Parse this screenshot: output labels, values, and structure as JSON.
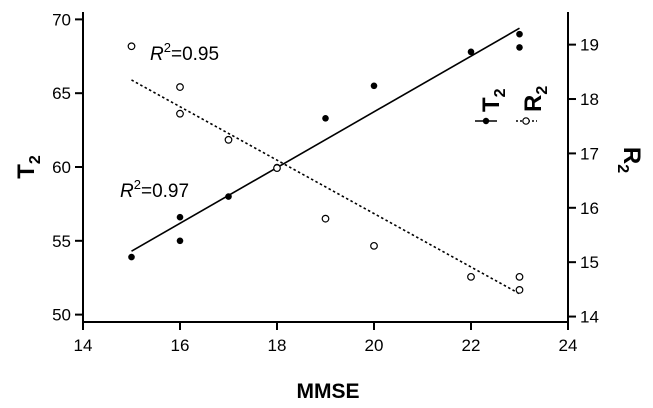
{
  "chart_data": {
    "type": "scatter",
    "xlabel": "MMSE",
    "ylabel_left": "T",
    "ylabel_left_sub": "2",
    "ylabel_right": "R",
    "ylabel_right_sub": "2",
    "xlim": [
      14,
      24
    ],
    "ylim_left": [
      49.5,
      70.5
    ],
    "ylim_right": [
      13.9,
      19.6
    ],
    "xticks": [
      "14",
      "16",
      "18",
      "20",
      "22",
      "24"
    ],
    "yticks_left": [
      "50",
      "55",
      "60",
      "65",
      "70"
    ],
    "yticks_right": [
      "14",
      "15",
      "16",
      "17",
      "18",
      "19"
    ],
    "grid": false,
    "legend_position": "right",
    "series": [
      {
        "name": "T",
        "name_sub": "2",
        "axis": "left",
        "marker": "filled-circle",
        "line_style": "solid",
        "color": "#000000",
        "points": [
          {
            "x": 15,
            "y": 53.9
          },
          {
            "x": 16,
            "y": 56.6
          },
          {
            "x": 16,
            "y": 55.0
          },
          {
            "x": 17,
            "y": 58.0
          },
          {
            "x": 18,
            "y": 60.0
          },
          {
            "x": 19,
            "y": 63.3
          },
          {
            "x": 20,
            "y": 65.5
          },
          {
            "x": 22,
            "y": 67.8
          },
          {
            "x": 23,
            "y": 69.0
          },
          {
            "x": 23,
            "y": 68.1
          }
        ],
        "fit": {
          "x": [
            15,
            23
          ],
          "y": [
            54.3,
            69.4
          ]
        },
        "r2_label": "=0.97",
        "r2_prefix": "R",
        "r2_sup": "2"
      },
      {
        "name": "R",
        "name_sub": "2",
        "axis": "right",
        "marker": "open-circle",
        "line_style": "dotted",
        "color": "#000000",
        "points": [
          {
            "x": 15,
            "y": 18.97
          },
          {
            "x": 16,
            "y": 18.22
          },
          {
            "x": 16,
            "y": 17.73
          },
          {
            "x": 17,
            "y": 17.25
          },
          {
            "x": 18,
            "y": 16.73
          },
          {
            "x": 19,
            "y": 15.8
          },
          {
            "x": 20,
            "y": 15.3
          },
          {
            "x": 22,
            "y": 14.73
          },
          {
            "x": 23,
            "y": 14.73
          },
          {
            "x": 23,
            "y": 14.49
          }
        ],
        "fit": {
          "x": [
            15,
            23
          ],
          "y": [
            18.35,
            14.42
          ]
        },
        "r2_label": "=0.95",
        "r2_prefix": "R",
        "r2_sup": "2"
      }
    ]
  }
}
